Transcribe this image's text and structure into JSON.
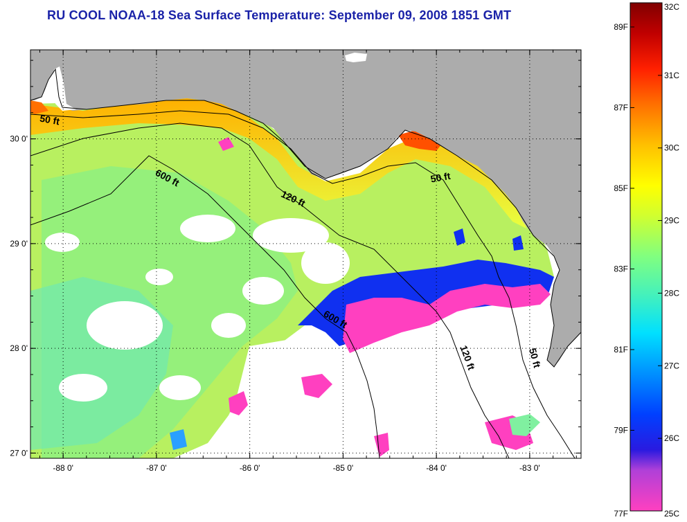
{
  "title": "RU COOL  NOAA-18  Sea Surface Temperature:  September 09, 2008 1851 GMT",
  "map": {
    "lon_min": -88.35,
    "lon_max": -82.45,
    "lat_min": 26.95,
    "lat_max": 30.85,
    "x_ticks": [
      {
        "lon": -88,
        "label": "-88 0'"
      },
      {
        "lon": -87,
        "label": "-87 0'"
      },
      {
        "lon": -86,
        "label": "-86 0'"
      },
      {
        "lon": -85,
        "label": "-85 0'"
      },
      {
        "lon": -84,
        "label": "-84 0'"
      },
      {
        "lon": -83,
        "label": "-83 0'"
      }
    ],
    "y_ticks": [
      {
        "lat": 30,
        "label": "30 0'"
      },
      {
        "lat": 29,
        "label": "29 0'"
      },
      {
        "lat": 28,
        "label": "28 0'"
      },
      {
        "lat": 27,
        "label": "27 0'"
      }
    ],
    "contour_labels": [
      {
        "text": "50 ft",
        "lon": -88.15,
        "lat": 30.15,
        "rotate": 10
      },
      {
        "text": "600 ft",
        "lon": -86.9,
        "lat": 29.6,
        "rotate": 28
      },
      {
        "text": "120 ft",
        "lon": -85.55,
        "lat": 29.4,
        "rotate": 25
      },
      {
        "text": "50 ft",
        "lon": -83.95,
        "lat": 29.6,
        "rotate": -10
      },
      {
        "text": "600 ft",
        "lon": -85.1,
        "lat": 28.25,
        "rotate": 30
      },
      {
        "text": "120 ft",
        "lon": -83.7,
        "lat": 27.9,
        "rotate": 70
      },
      {
        "text": "50 ft",
        "lon": -82.98,
        "lat": 27.9,
        "rotate": 75
      }
    ],
    "colors": {
      "land": "#acacac",
      "no_data": "#ffffff",
      "grid": "#000000"
    }
  },
  "colorbar": {
    "celsius_labels": [
      "32C",
      "31C",
      "30C",
      "29C",
      "28C",
      "27C",
      "26C",
      "25C"
    ],
    "fahrenheit_labels": [
      "89F",
      "87F",
      "85F",
      "83F",
      "81F",
      "79F",
      "77F"
    ],
    "stops": [
      "#ff40c0",
      "#8c3cd8",
      "#2a1ae0",
      "#0040ff",
      "#0090ff",
      "#00e0ff",
      "#40f0c0",
      "#80ff80",
      "#d0ff30",
      "#ffff00",
      "#ffc000",
      "#ff7000",
      "#ff2000",
      "#c00000",
      "#800000"
    ]
  }
}
